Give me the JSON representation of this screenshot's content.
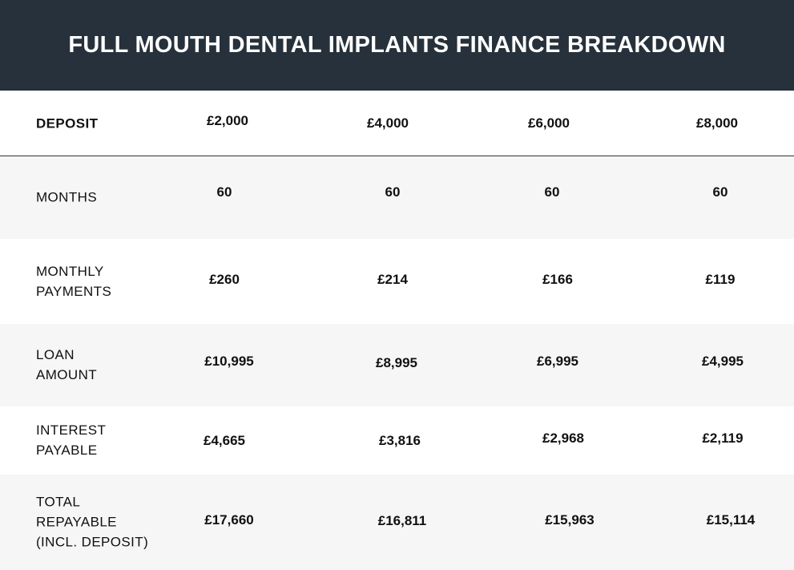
{
  "title": "FULL MOUTH DENTAL IMPLANTS FINANCE BREAKDOWN",
  "rows": [
    {
      "label": "DEPOSIT",
      "values": [
        "£2,000",
        "£4,000",
        "£6,000",
        "£8,000"
      ]
    },
    {
      "label": "MONTHS",
      "values": [
        "60",
        "60",
        "60",
        "60"
      ]
    },
    {
      "label": "MONTHLY\nPAYMENTS",
      "values": [
        "£260",
        "£214",
        "£166",
        "£119"
      ]
    },
    {
      "label": "LOAN\nAMOUNT",
      "values": [
        "£10,995",
        "£8,995",
        "£6,995",
        "£4,995"
      ]
    },
    {
      "label": "INTEREST\nPAYABLE",
      "values": [
        "£4,665",
        "£3,816",
        "£2,968",
        "£2,119"
      ]
    },
    {
      "label": "TOTAL\nREPAYABLE\n(INCL. DEPOSIT)",
      "values": [
        "£17,660",
        "£16,811",
        "£15,963",
        "£15,114"
      ]
    }
  ],
  "colors": {
    "header_bg": "#26313b",
    "header_text": "#ffffff",
    "alt_row_bg": "#f6f6f6"
  }
}
